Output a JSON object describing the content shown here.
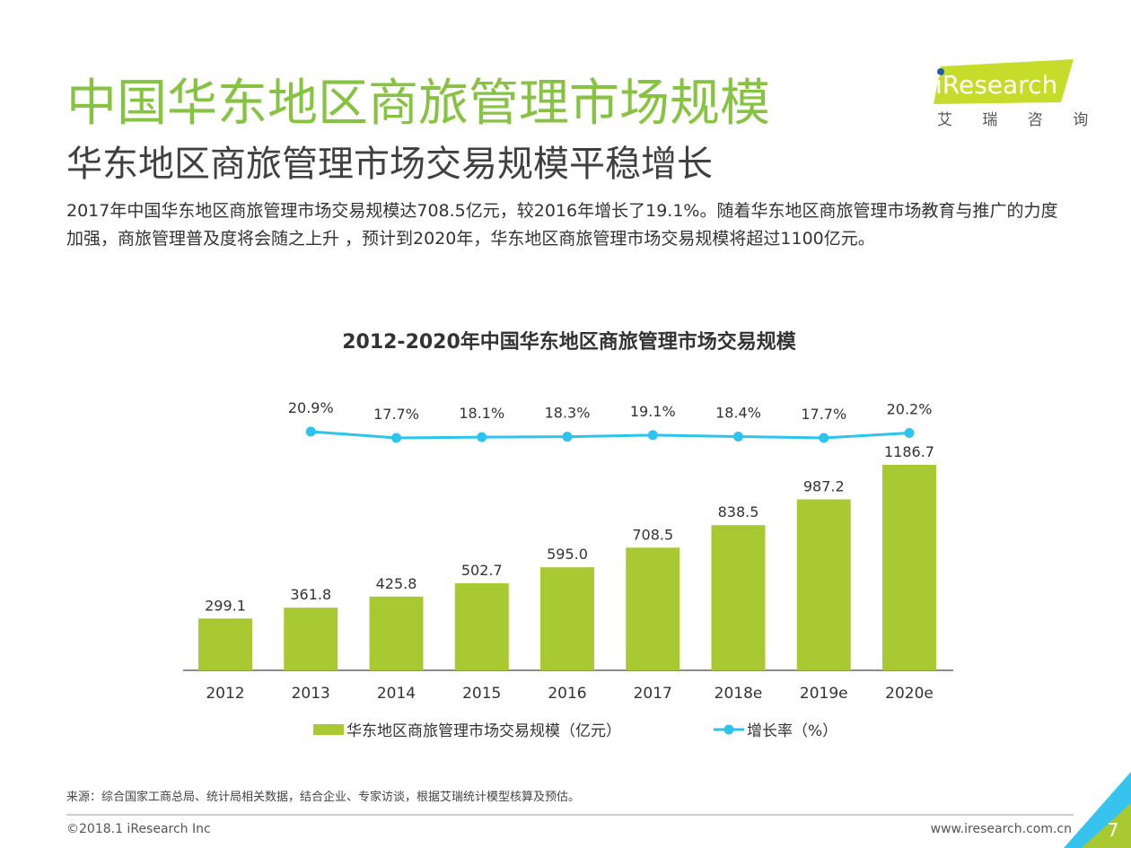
{
  "header": {
    "title": "中国华东地区商旅管理市场规模",
    "subtitle": "华东地区商旅管理市场交易规模平稳增长",
    "description": "2017年中国华东地区商旅管理市场交易规模达708.5亿元，较2016年增长了19.1%。随着华东地区商旅管理市场教育与推广的力度加强，商旅管理普及度将会随之上升 ，预计到2020年，华东地区商旅管理市场交易规模将超过1100亿元。"
  },
  "logo": {
    "name": "iResearch",
    "subtitle": "艾 瑞 咨 询"
  },
  "chart_data": {
    "type": "bar",
    "title": "2012-2020年中国华东地区商旅管理市场交易规模",
    "categories": [
      "2012",
      "2013",
      "2014",
      "2015",
      "2016",
      "2017",
      "2018e",
      "2019e",
      "2020e"
    ],
    "series": [
      {
        "name": "华东地区商旅管理市场交易规模（亿元）",
        "type": "bar",
        "color": "#a8c932",
        "values": [
          299.1,
          361.8,
          425.8,
          502.7,
          595.0,
          708.5,
          838.5,
          987.2,
          1186.7
        ],
        "value_labels": [
          "299.1",
          "361.8",
          "425.8",
          "502.7",
          "595.0",
          "708.5",
          "838.5",
          "987.2",
          "1186.7"
        ]
      },
      {
        "name": "增长率（%）",
        "type": "line",
        "color": "#2cc3ee",
        "values": [
          null,
          20.9,
          17.7,
          18.1,
          18.3,
          19.1,
          18.4,
          17.7,
          20.2
        ],
        "value_labels": [
          null,
          "20.9%",
          "17.7%",
          "18.1%",
          "18.3%",
          "19.1%",
          "18.4%",
          "17.7%",
          "20.2%"
        ]
      }
    ]
  },
  "footer": {
    "source": "来源：综合国家工商总局、统计局相关数据，结合企业、专家访谈，根据艾瑞统计模型核算及预估。",
    "copyright": "©2018.1 iResearch Inc",
    "website": "www.iresearch.com.cn",
    "page": "7"
  }
}
